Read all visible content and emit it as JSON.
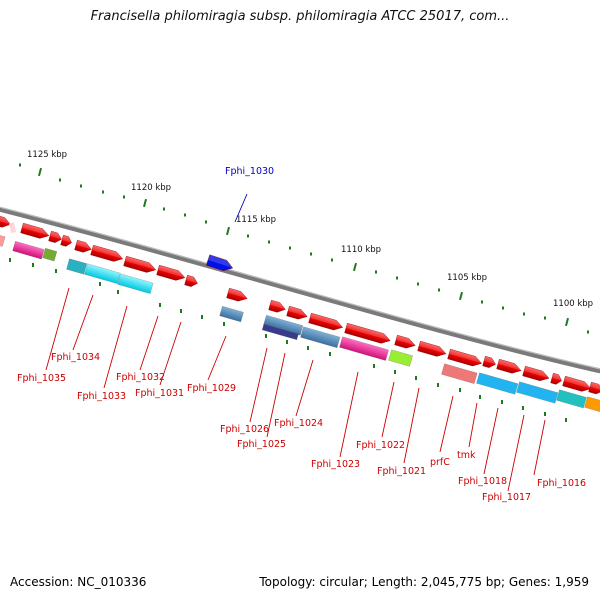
{
  "title": "Francisella philomiragia subsp. philomiragia ATCC 25017, com...",
  "footer": {
    "accession": "Accession: NC_010336",
    "topology": "Topology: circular; Length: 2,045,775 bp; Genes: 1,959"
  },
  "ruler": [
    {
      "label": "1125 kbp",
      "color": "#111111"
    },
    {
      "label": "1120 kbp",
      "color": "#111111"
    },
    {
      "label": "1115 kbp",
      "color": "#111111"
    },
    {
      "label": "1110 kbp",
      "color": "#111111"
    },
    {
      "label": "1105 kbp",
      "color": "#111111"
    },
    {
      "label": "1100 kbp",
      "color": "#111111"
    }
  ],
  "genes": [
    {
      "name": "Fphi_1035",
      "color": "#cc0000"
    },
    {
      "name": "Fphi_1034",
      "color": "#cc0000"
    },
    {
      "name": "Fphi_1033",
      "color": "#cc0000"
    },
    {
      "name": "Fphi_1032",
      "color": "#cc0000"
    },
    {
      "name": "Fphi_1031",
      "color": "#cc0000"
    },
    {
      "name": "Fphi_1030",
      "color": "#0000cc"
    },
    {
      "name": "Fphi_1029",
      "color": "#cc0000"
    },
    {
      "name": "Fphi_1026",
      "color": "#cc0000"
    },
    {
      "name": "Fphi_1025",
      "color": "#cc0000"
    },
    {
      "name": "Fphi_1024",
      "color": "#cc0000"
    },
    {
      "name": "Fphi_1023",
      "color": "#cc0000"
    },
    {
      "name": "Fphi_1022",
      "color": "#cc0000"
    },
    {
      "name": "Fphi_1021",
      "color": "#cc0000"
    },
    {
      "name": "prfC",
      "color": "#cc0000"
    },
    {
      "name": "tmk",
      "color": "#cc0000"
    },
    {
      "name": "Fphi_1018",
      "color": "#cc0000"
    },
    {
      "name": "Fphi_1017",
      "color": "#cc0000"
    },
    {
      "name": "Fphi_1016",
      "color": "#cc0000"
    }
  ],
  "colors": {
    "backbone": "#808080",
    "forward_gene": "#ee0000",
    "tick": "#1e7a1e",
    "gene_label": "#cc0000",
    "highlight_label": "#0000cc"
  }
}
